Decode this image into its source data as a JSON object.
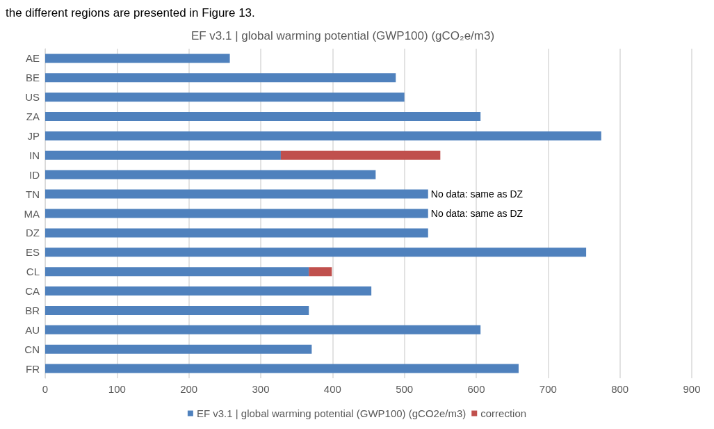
{
  "chart_data": {
    "type": "bar",
    "orientation": "horizontal",
    "stacked": true,
    "title": "EF v3.1 | global warming potential (GWP100) (gCO₂e/m3)",
    "categories": [
      "AE",
      "BE",
      "US",
      "ZA",
      "JP",
      "IN",
      "ID",
      "TN",
      "MA",
      "DZ",
      "ES",
      "CL",
      "CA",
      "BR",
      "AU",
      "CN",
      "FR"
    ],
    "series": [
      {
        "name": "EF v3.1 | global warming potential (GWP100) (gCO2e/m3)",
        "color": "#4f81bd",
        "values": [
          257,
          488,
          500,
          606,
          774,
          328,
          460,
          533,
          533,
          533,
          753,
          367,
          454,
          367,
          606,
          371,
          659
        ]
      },
      {
        "name": "correction",
        "color": "#c0504d",
        "values": [
          null,
          null,
          null,
          null,
          null,
          222,
          null,
          null,
          null,
          null,
          null,
          32,
          null,
          null,
          null,
          null,
          null
        ]
      }
    ],
    "annotations": [
      "the different regions are presented in Figure 13.",
      {
        "text": "No data: same as DZ",
        "x": 533,
        "y": "TN"
      },
      {
        "text": "No data: same as DZ",
        "x": 533,
        "y": "MA"
      }
    ],
    "xlim": [
      0,
      900
    ],
    "xticks": [
      0,
      100,
      200,
      300,
      400,
      500,
      600,
      700,
      800,
      900
    ],
    "grid": "x",
    "legend": "bottom"
  }
}
